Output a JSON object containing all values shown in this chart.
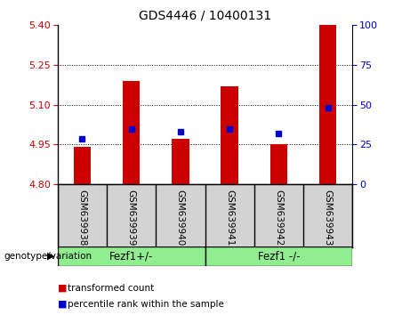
{
  "title": "GDS4446 / 10400131",
  "samples": [
    "GSM639938",
    "GSM639939",
    "GSM639940",
    "GSM639941",
    "GSM639942",
    "GSM639943"
  ],
  "red_values": [
    4.94,
    5.19,
    4.97,
    5.17,
    4.95,
    5.4
  ],
  "blue_values": [
    4.97,
    5.01,
    5.0,
    5.01,
    4.99,
    5.09
  ],
  "y_min": 4.8,
  "y_max": 5.4,
  "y_ticks": [
    4.8,
    4.95,
    5.1,
    5.25,
    5.4
  ],
  "y_ticks_right": [
    0,
    25,
    50,
    75,
    100
  ],
  "group1_label": "Fezf1+/-",
  "group2_label": "Fezf1 -/-",
  "group_label": "genotype/variation",
  "bar_color": "#CC0000",
  "marker_color": "#0000CC",
  "bar_width": 0.35,
  "marker_size": 5,
  "legend_items": [
    {
      "label": "transformed count",
      "color": "#CC0000"
    },
    {
      "label": "percentile rank within the sample",
      "color": "#0000CC"
    }
  ],
  "background_color": "#ffffff",
  "plot_bg_color": "#ffffff",
  "sample_box_color": "#d3d3d3",
  "green_color": "#90EE90"
}
